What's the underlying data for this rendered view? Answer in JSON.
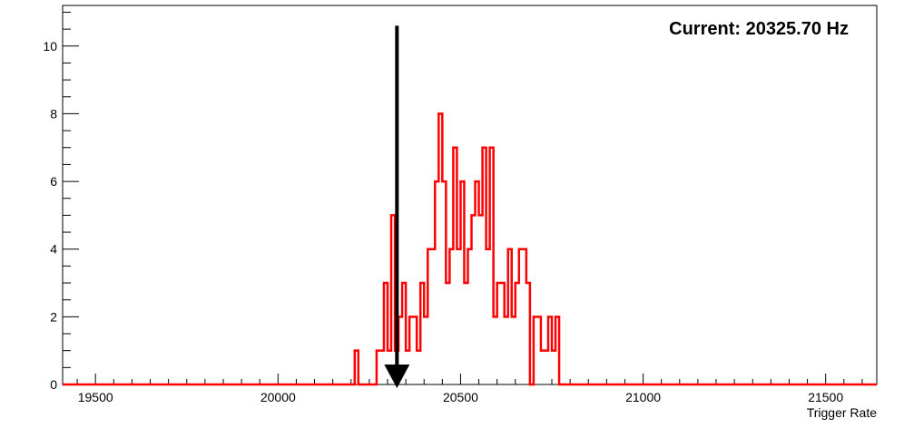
{
  "chart_data": {
    "type": "histogram",
    "xlabel": "Trigger Rate",
    "ylabel": "",
    "xlim": [
      19410,
      21640
    ],
    "ylim": [
      0,
      11.2
    ],
    "x_ticks": [
      19500,
      20000,
      20500,
      21000,
      21500
    ],
    "x_tick_labels": [
      "19500",
      "20000",
      "20500",
      "21000",
      "21500"
    ],
    "y_ticks": [
      0,
      2,
      4,
      6,
      8,
      10
    ],
    "y_tick_labels": [
      "0",
      "2",
      "4",
      "6",
      "8",
      "10"
    ],
    "bin_width": 10,
    "series": [
      {
        "bin_start": [
          20210,
          20220,
          20230,
          20240,
          20250,
          20260,
          20270,
          20280,
          20290,
          20300,
          20310,
          20320,
          20330,
          20340,
          20350,
          20360,
          20370,
          20380,
          20390,
          20400,
          20410,
          20420,
          20430,
          20440,
          20450,
          20460,
          20470,
          20480,
          20490,
          20500,
          20510,
          20520,
          20530,
          20540,
          20550,
          20560,
          20570,
          20580,
          20590,
          20600,
          20610,
          20620,
          20630,
          20640,
          20650,
          20660,
          20670,
          20680,
          20690,
          20700,
          20710,
          20720,
          20730,
          20740,
          20750,
          20760,
          20770
        ],
        "counts": [
          1,
          0,
          0,
          0,
          0,
          0,
          1,
          1,
          3,
          1,
          5,
          1,
          2,
          3,
          1,
          2,
          2,
          1,
          3,
          2,
          4,
          4,
          6,
          8,
          6,
          3,
          4,
          7,
          4,
          6,
          3,
          4,
          5,
          6,
          5,
          7,
          4,
          7,
          2,
          3,
          3,
          2,
          4,
          2,
          3,
          4,
          4,
          3,
          0,
          2,
          2,
          1,
          1,
          2,
          1,
          2,
          0
        ],
        "color": "#ff0000"
      }
    ],
    "marker": {
      "value": 20325.7,
      "arrow_top_y": 10.6,
      "color": "#000000"
    },
    "annotation": "Current: 20325.70 Hz",
    "grid": false
  }
}
